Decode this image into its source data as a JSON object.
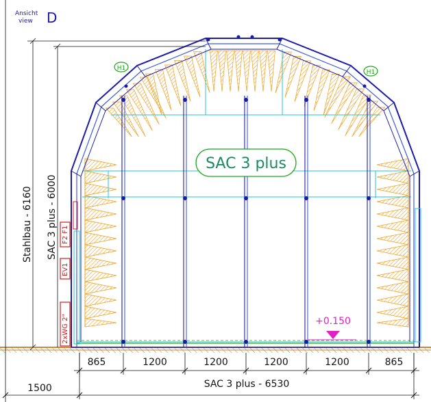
{
  "view": {
    "label_top": "Ansicht",
    "label_bottom": "view",
    "letter": "D"
  },
  "center_label": "SAC 3 plus",
  "dimensions": {
    "stahlbau": "Stahlbau - 6160",
    "sac_height": "SAC 3 plus - 6000",
    "left_offset": "1500",
    "total_width": "SAC 3 plus - 6530",
    "segments": [
      "865",
      "1200",
      "1200",
      "1200",
      "1200",
      "865"
    ]
  },
  "markers": {
    "h1_left": "H1",
    "h1_right": "H1",
    "elevation": "+0.150"
  },
  "side_tags": [
    "2xWG 2\"",
    "EV1",
    "F2 F1"
  ],
  "colors": {
    "frame": "#1a1aa8",
    "frame_light": "#3c5ad8",
    "cyan": "#25c6da",
    "absorber": "#f0a020",
    "green": "#18a818",
    "magenta": "#e020c8",
    "red": "#d81818",
    "ground": "#c48a3a",
    "dim": "#111111"
  }
}
